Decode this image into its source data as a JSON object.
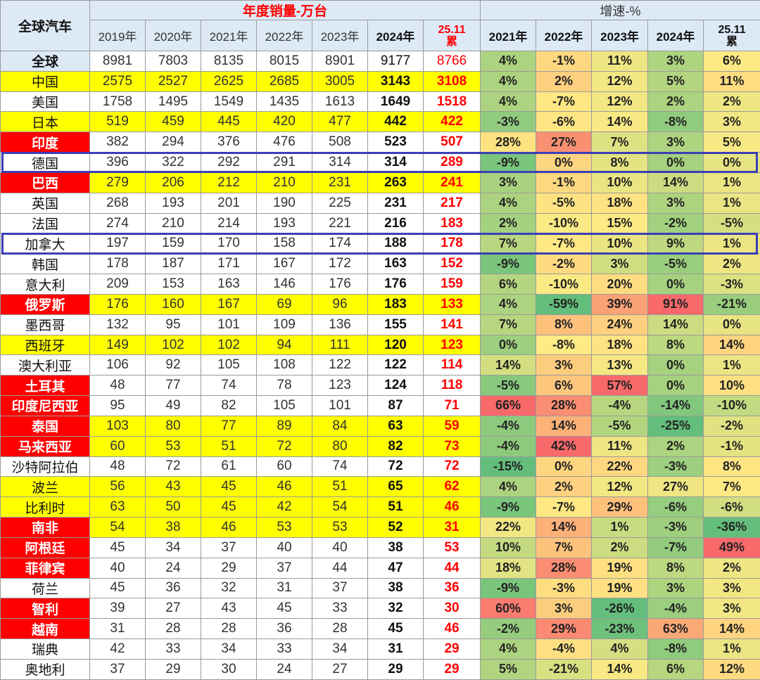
{
  "chart_data": {
    "type": "table",
    "header": {
      "corner": "全球汽车",
      "sales_group": "年度销量-万台",
      "growth_group": "增速-%",
      "sales_years": [
        "2019年",
        "2020年",
        "2021年",
        "2022年",
        "2023年",
        "2024年",
        "25.11\n累"
      ],
      "growth_years": [
        "2021年",
        "2022年",
        "2023年",
        "2024年",
        "25.11\n累"
      ]
    },
    "rows": [
      {
        "name": "全球",
        "hl": "blue",
        "row_bg": "",
        "boxed": false,
        "sales": [
          8981,
          7803,
          8135,
          8015,
          8901,
          9177,
          8766
        ],
        "growth": [
          "4%",
          "-1%",
          "11%",
          "3%",
          "6%"
        ]
      },
      {
        "name": "中国",
        "hl": "",
        "row_bg": "yellow",
        "boxed": false,
        "sales": [
          2575,
          2527,
          2625,
          2685,
          3005,
          3143,
          3108
        ],
        "growth": [
          "4%",
          "2%",
          "12%",
          "5%",
          "11%"
        ]
      },
      {
        "name": "美国",
        "hl": "",
        "row_bg": "",
        "boxed": false,
        "sales": [
          1758,
          1495,
          1549,
          1435,
          1613,
          1649,
          1518
        ],
        "growth": [
          "4%",
          "-7%",
          "12%",
          "2%",
          "2%"
        ]
      },
      {
        "name": "日本",
        "hl": "",
        "row_bg": "yellow",
        "boxed": false,
        "sales": [
          519,
          459,
          445,
          420,
          477,
          442,
          422
        ],
        "growth": [
          "-3%",
          "-6%",
          "14%",
          "-8%",
          "3%"
        ]
      },
      {
        "name": "印度",
        "hl": "red",
        "row_bg": "",
        "boxed": false,
        "sales": [
          382,
          294,
          376,
          476,
          508,
          523,
          507
        ],
        "growth": [
          "28%",
          "27%",
          "7%",
          "3%",
          "5%"
        ]
      },
      {
        "name": "德国",
        "hl": "",
        "row_bg": "",
        "boxed": true,
        "sales": [
          396,
          322,
          292,
          291,
          314,
          314,
          289
        ],
        "growth": [
          "-9%",
          "0%",
          "8%",
          "0%",
          "0%"
        ]
      },
      {
        "name": "巴西",
        "hl": "red",
        "row_bg": "yellow",
        "boxed": false,
        "sales": [
          279,
          206,
          212,
          210,
          231,
          263,
          241
        ],
        "growth": [
          "3%",
          "-1%",
          "10%",
          "14%",
          "1%"
        ]
      },
      {
        "name": "英国",
        "hl": "",
        "row_bg": "",
        "boxed": false,
        "sales": [
          268,
          193,
          201,
          190,
          225,
          231,
          217
        ],
        "growth": [
          "4%",
          "-5%",
          "18%",
          "3%",
          "1%"
        ]
      },
      {
        "name": "法国",
        "hl": "",
        "row_bg": "",
        "boxed": false,
        "sales": [
          274,
          210,
          214,
          193,
          221,
          216,
          183
        ],
        "growth": [
          "2%",
          "-10%",
          "15%",
          "-2%",
          "-5%"
        ]
      },
      {
        "name": "加拿大",
        "hl": "",
        "row_bg": "",
        "boxed": true,
        "sales": [
          197,
          159,
          170,
          158,
          174,
          188,
          178
        ],
        "growth": [
          "7%",
          "-7%",
          "10%",
          "9%",
          "1%"
        ]
      },
      {
        "name": "韩国",
        "hl": "",
        "row_bg": "",
        "boxed": false,
        "sales": [
          178,
          187,
          171,
          167,
          172,
          163,
          152
        ],
        "growth": [
          "-9%",
          "-2%",
          "3%",
          "-5%",
          "2%"
        ]
      },
      {
        "name": "意大利",
        "hl": "",
        "row_bg": "",
        "boxed": false,
        "sales": [
          209,
          153,
          163,
          146,
          176,
          176,
          159
        ],
        "growth": [
          "6%",
          "-10%",
          "20%",
          "0%",
          "-3%"
        ]
      },
      {
        "name": "俄罗斯",
        "hl": "red",
        "row_bg": "yellow",
        "boxed": false,
        "sales": [
          176,
          160,
          167,
          69,
          96,
          183,
          133
        ],
        "growth": [
          "4%",
          "-59%",
          "39%",
          "91%",
          "-21%"
        ]
      },
      {
        "name": "墨西哥",
        "hl": "",
        "row_bg": "",
        "boxed": false,
        "sales": [
          132,
          95,
          101,
          109,
          136,
          155,
          141
        ],
        "growth": [
          "7%",
          "8%",
          "24%",
          "14%",
          "0%"
        ]
      },
      {
        "name": "西班牙",
        "hl": "",
        "row_bg": "yellow",
        "boxed": false,
        "sales": [
          149,
          102,
          102,
          94,
          111,
          120,
          123
        ],
        "growth": [
          "0%",
          "-8%",
          "18%",
          "8%",
          "14%"
        ]
      },
      {
        "name": "澳大利亚",
        "hl": "",
        "row_bg": "",
        "boxed": false,
        "sales": [
          106,
          92,
          105,
          108,
          122,
          122,
          114
        ],
        "growth": [
          "14%",
          "3%",
          "13%",
          "0%",
          "1%"
        ]
      },
      {
        "name": "土耳其",
        "hl": "red",
        "row_bg": "",
        "boxed": false,
        "sales": [
          48,
          77,
          74,
          78,
          123,
          124,
          118
        ],
        "growth": [
          "-5%",
          "6%",
          "57%",
          "0%",
          "10%"
        ]
      },
      {
        "name": "印度尼西亚",
        "hl": "red",
        "row_bg": "",
        "boxed": false,
        "sales": [
          95,
          49,
          82,
          105,
          101,
          87,
          71
        ],
        "growth": [
          "66%",
          "28%",
          "-4%",
          "-14%",
          "-10%"
        ]
      },
      {
        "name": "泰国",
        "hl": "red",
        "row_bg": "yellow",
        "boxed": false,
        "sales": [
          103,
          80,
          77,
          89,
          84,
          63,
          59
        ],
        "growth": [
          "-4%",
          "14%",
          "-5%",
          "-25%",
          "-2%"
        ]
      },
      {
        "name": "马来西亚",
        "hl": "red",
        "row_bg": "yellow",
        "boxed": false,
        "sales": [
          60,
          53,
          51,
          72,
          80,
          82,
          73
        ],
        "growth": [
          "-4%",
          "42%",
          "11%",
          "2%",
          "-1%"
        ]
      },
      {
        "name": "沙特阿拉伯",
        "hl": "",
        "row_bg": "",
        "boxed": false,
        "sales": [
          48,
          72,
          61,
          60,
          74,
          72,
          72
        ],
        "growth": [
          "-15%",
          "0%",
          "22%",
          "-3%",
          "8%"
        ]
      },
      {
        "name": "波兰",
        "hl": "",
        "row_bg": "yellow",
        "boxed": false,
        "sales": [
          56,
          43,
          45,
          46,
          51,
          65,
          62
        ],
        "growth": [
          "4%",
          "2%",
          "12%",
          "27%",
          "7%"
        ]
      },
      {
        "name": "比利时",
        "hl": "",
        "row_bg": "yellow",
        "boxed": false,
        "sales": [
          63,
          50,
          45,
          42,
          54,
          51,
          46
        ],
        "growth": [
          "-9%",
          "-7%",
          "29%",
          "-6%",
          "-6%"
        ]
      },
      {
        "name": "南非",
        "hl": "red",
        "row_bg": "yellow",
        "boxed": false,
        "sales": [
          54,
          38,
          46,
          53,
          53,
          52,
          31
        ],
        "growth": [
          "22%",
          "14%",
          "1%",
          "-3%",
          "-36%"
        ]
      },
      {
        "name": "阿根廷",
        "hl": "red",
        "row_bg": "",
        "boxed": false,
        "sales": [
          45,
          34,
          37,
          40,
          40,
          38,
          53
        ],
        "growth": [
          "10%",
          "7%",
          "2%",
          "-7%",
          "49%"
        ]
      },
      {
        "name": "菲律宾",
        "hl": "red",
        "row_bg": "",
        "boxed": false,
        "sales": [
          40,
          24,
          29,
          37,
          44,
          47,
          44
        ],
        "growth": [
          "18%",
          "28%",
          "19%",
          "8%",
          "2%"
        ]
      },
      {
        "name": "荷兰",
        "hl": "",
        "row_bg": "",
        "boxed": false,
        "sales": [
          45,
          36,
          32,
          31,
          37,
          38,
          36
        ],
        "growth": [
          "-9%",
          "-3%",
          "19%",
          "3%",
          "3%"
        ]
      },
      {
        "name": "智利",
        "hl": "red",
        "row_bg": "",
        "boxed": false,
        "sales": [
          39,
          27,
          43,
          45,
          33,
          32,
          30
        ],
        "growth": [
          "60%",
          "3%",
          "-26%",
          "-4%",
          "3%"
        ]
      },
      {
        "name": "越南",
        "hl": "red",
        "row_bg": "",
        "boxed": false,
        "sales": [
          31,
          28,
          28,
          36,
          28,
          45,
          46
        ],
        "growth": [
          "-2%",
          "29%",
          "-23%",
          "63%",
          "14%"
        ]
      },
      {
        "name": "瑞典",
        "hl": "",
        "row_bg": "",
        "boxed": false,
        "sales": [
          42,
          33,
          34,
          33,
          34,
          31,
          29
        ],
        "growth": [
          "4%",
          "-4%",
          "4%",
          "-8%",
          "1%"
        ]
      },
      {
        "name": "奥地利",
        "hl": "",
        "row_bg": "",
        "boxed": false,
        "sales": [
          37,
          29,
          30,
          24,
          27,
          29,
          29
        ],
        "growth": [
          "5%",
          "-21%",
          "14%",
          "6%",
          "12%"
        ]
      }
    ],
    "colors": {
      "header_bg": "#ddeaf6",
      "highlight_red": "#ff0000",
      "row_yellow": "#ffff00",
      "box_line": "#3a3fb5",
      "heat_low": "#63be7b",
      "heat_mid": "#ffeb84",
      "heat_high": "#f8696b"
    }
  }
}
